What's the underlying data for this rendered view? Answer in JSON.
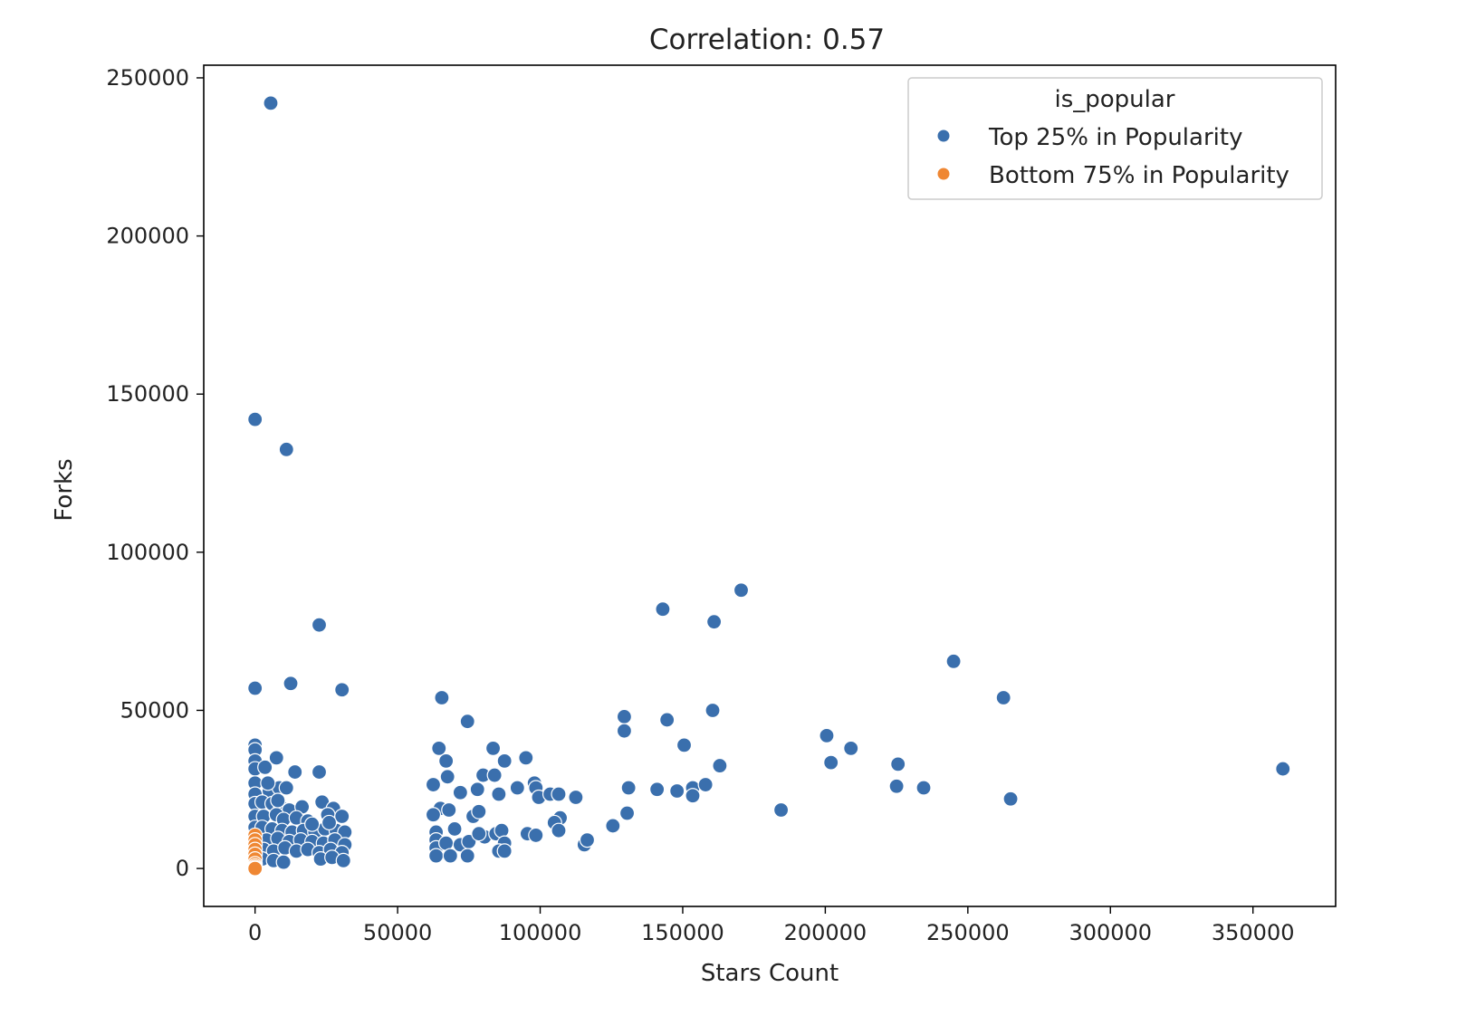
{
  "chart_data": {
    "type": "scatter",
    "title": "Correlation: 0.57",
    "xlabel": "Stars Count",
    "ylabel": "Forks",
    "xlim": [
      -18000,
      379000
    ],
    "ylim": [
      -12000,
      254000
    ],
    "xticks": [
      0,
      50000,
      100000,
      150000,
      200000,
      250000,
      300000,
      350000
    ],
    "yticks": [
      0,
      50000,
      100000,
      150000,
      200000,
      250000
    ],
    "grid": false,
    "legend": {
      "title": "is_popular",
      "placement": "top-right"
    },
    "series": [
      {
        "name": "Top 25% in Popularity",
        "color": "#3a6fad",
        "points": [
          [
            5500,
            242000
          ],
          [
            0,
            142000
          ],
          [
            11000,
            132500
          ],
          [
            22500,
            77000
          ],
          [
            12500,
            58500
          ],
          [
            30500,
            56500
          ],
          [
            0,
            57000
          ],
          [
            0,
            39000
          ],
          [
            0,
            37500
          ],
          [
            0,
            34000
          ],
          [
            0,
            31500
          ],
          [
            0,
            27000
          ],
          [
            0,
            23500
          ],
          [
            0,
            20500
          ],
          [
            0,
            16500
          ],
          [
            0,
            13000
          ],
          [
            3500,
            32000
          ],
          [
            7500,
            35000
          ],
          [
            14000,
            30500
          ],
          [
            22500,
            30500
          ],
          [
            5000,
            24500
          ],
          [
            8500,
            25500
          ],
          [
            11000,
            25500
          ],
          [
            2500,
            21000
          ],
          [
            6000,
            20500
          ],
          [
            9000,
            19500
          ],
          [
            12000,
            18500
          ],
          [
            16500,
            19500
          ],
          [
            23500,
            21000
          ],
          [
            27500,
            19000
          ],
          [
            3000,
            16500
          ],
          [
            7500,
            17000
          ],
          [
            10000,
            15500
          ],
          [
            14500,
            16000
          ],
          [
            18500,
            15000
          ],
          [
            25500,
            17000
          ],
          [
            30500,
            16500
          ],
          [
            2500,
            13000
          ],
          [
            6000,
            12500
          ],
          [
            9500,
            12000
          ],
          [
            13000,
            11500
          ],
          [
            17000,
            12000
          ],
          [
            21000,
            11500
          ],
          [
            24500,
            12500
          ],
          [
            28500,
            12000
          ],
          [
            31500,
            11500
          ],
          [
            4000,
            9000
          ],
          [
            8000,
            9500
          ],
          [
            12000,
            8500
          ],
          [
            16000,
            9000
          ],
          [
            20000,
            8500
          ],
          [
            24000,
            8000
          ],
          [
            28000,
            9000
          ],
          [
            31500,
            7500
          ],
          [
            3000,
            6000
          ],
          [
            6500,
            5500
          ],
          [
            10500,
            6500
          ],
          [
            14500,
            5500
          ],
          [
            18500,
            6000
          ],
          [
            22500,
            5000
          ],
          [
            26500,
            6000
          ],
          [
            30500,
            5000
          ],
          [
            2500,
            3000
          ],
          [
            6500,
            2500
          ],
          [
            10000,
            2000
          ],
          [
            23000,
            3000
          ],
          [
            27000,
            3500
          ],
          [
            31000,
            2500
          ],
          [
            8000,
            21500
          ],
          [
            4500,
            27000
          ],
          [
            20000,
            14000
          ],
          [
            26000,
            14500
          ],
          [
            65500,
            54000
          ],
          [
            74500,
            46500
          ],
          [
            64500,
            38000
          ],
          [
            67000,
            34000
          ],
          [
            62500,
            26500
          ],
          [
            67500,
            29000
          ],
          [
            72000,
            24000
          ],
          [
            65000,
            19000
          ],
          [
            68000,
            18500
          ],
          [
            62500,
            17000
          ],
          [
            63500,
            11500
          ],
          [
            63500,
            9000
          ],
          [
            63500,
            6500
          ],
          [
            63500,
            4000
          ],
          [
            67000,
            8000
          ],
          [
            68500,
            4000
          ],
          [
            70000,
            12500
          ],
          [
            72000,
            7500
          ],
          [
            75000,
            8500
          ],
          [
            74500,
            4000
          ],
          [
            76500,
            16500
          ],
          [
            78500,
            18000
          ],
          [
            78000,
            25000
          ],
          [
            80000,
            29500
          ],
          [
            83500,
            38000
          ],
          [
            84000,
            29500
          ],
          [
            85500,
            23500
          ],
          [
            87500,
            34000
          ],
          [
            80500,
            10000
          ],
          [
            84500,
            11000
          ],
          [
            86500,
            12000
          ],
          [
            87500,
            8000
          ],
          [
            85500,
            5500
          ],
          [
            87500,
            5500
          ],
          [
            78500,
            11000
          ],
          [
            92000,
            25500
          ],
          [
            95000,
            35000
          ],
          [
            95500,
            11000
          ],
          [
            98500,
            10500
          ],
          [
            98000,
            27000
          ],
          [
            98500,
            25500
          ],
          [
            99500,
            22500
          ],
          [
            103500,
            23500
          ],
          [
            106500,
            23500
          ],
          [
            107000,
            16000
          ],
          [
            105000,
            14500
          ],
          [
            106500,
            12000
          ],
          [
            112500,
            22500
          ],
          [
            115500,
            7500
          ],
          [
            116500,
            9000
          ],
          [
            125500,
            13500
          ],
          [
            129500,
            48000
          ],
          [
            129500,
            43500
          ],
          [
            131000,
            25500
          ],
          [
            130500,
            17500
          ],
          [
            143000,
            82000
          ],
          [
            141000,
            25000
          ],
          [
            144500,
            47000
          ],
          [
            148000,
            24500
          ],
          [
            150500,
            39000
          ],
          [
            153500,
            25500
          ],
          [
            153500,
            23000
          ],
          [
            158000,
            26500
          ],
          [
            160500,
            50000
          ],
          [
            161000,
            78000
          ],
          [
            163000,
            32500
          ],
          [
            170500,
            88000
          ],
          [
            184500,
            18500
          ],
          [
            200500,
            42000
          ],
          [
            202000,
            33500
          ],
          [
            209000,
            38000
          ],
          [
            225000,
            26000
          ],
          [
            225500,
            33000
          ],
          [
            234500,
            25500
          ],
          [
            245000,
            65500
          ],
          [
            262500,
            54000
          ],
          [
            265000,
            22000
          ],
          [
            360500,
            31500
          ]
        ]
      },
      {
        "name": "Bottom 75% in Popularity",
        "color": "#ef8733",
        "points": [
          [
            0,
            10500
          ],
          [
            0,
            9000
          ],
          [
            0,
            7500
          ],
          [
            0,
            6000
          ],
          [
            0,
            4500
          ],
          [
            0,
            3000
          ],
          [
            0,
            1500
          ],
          [
            0,
            800
          ],
          [
            0,
            300
          ],
          [
            0,
            0
          ]
        ]
      }
    ]
  }
}
